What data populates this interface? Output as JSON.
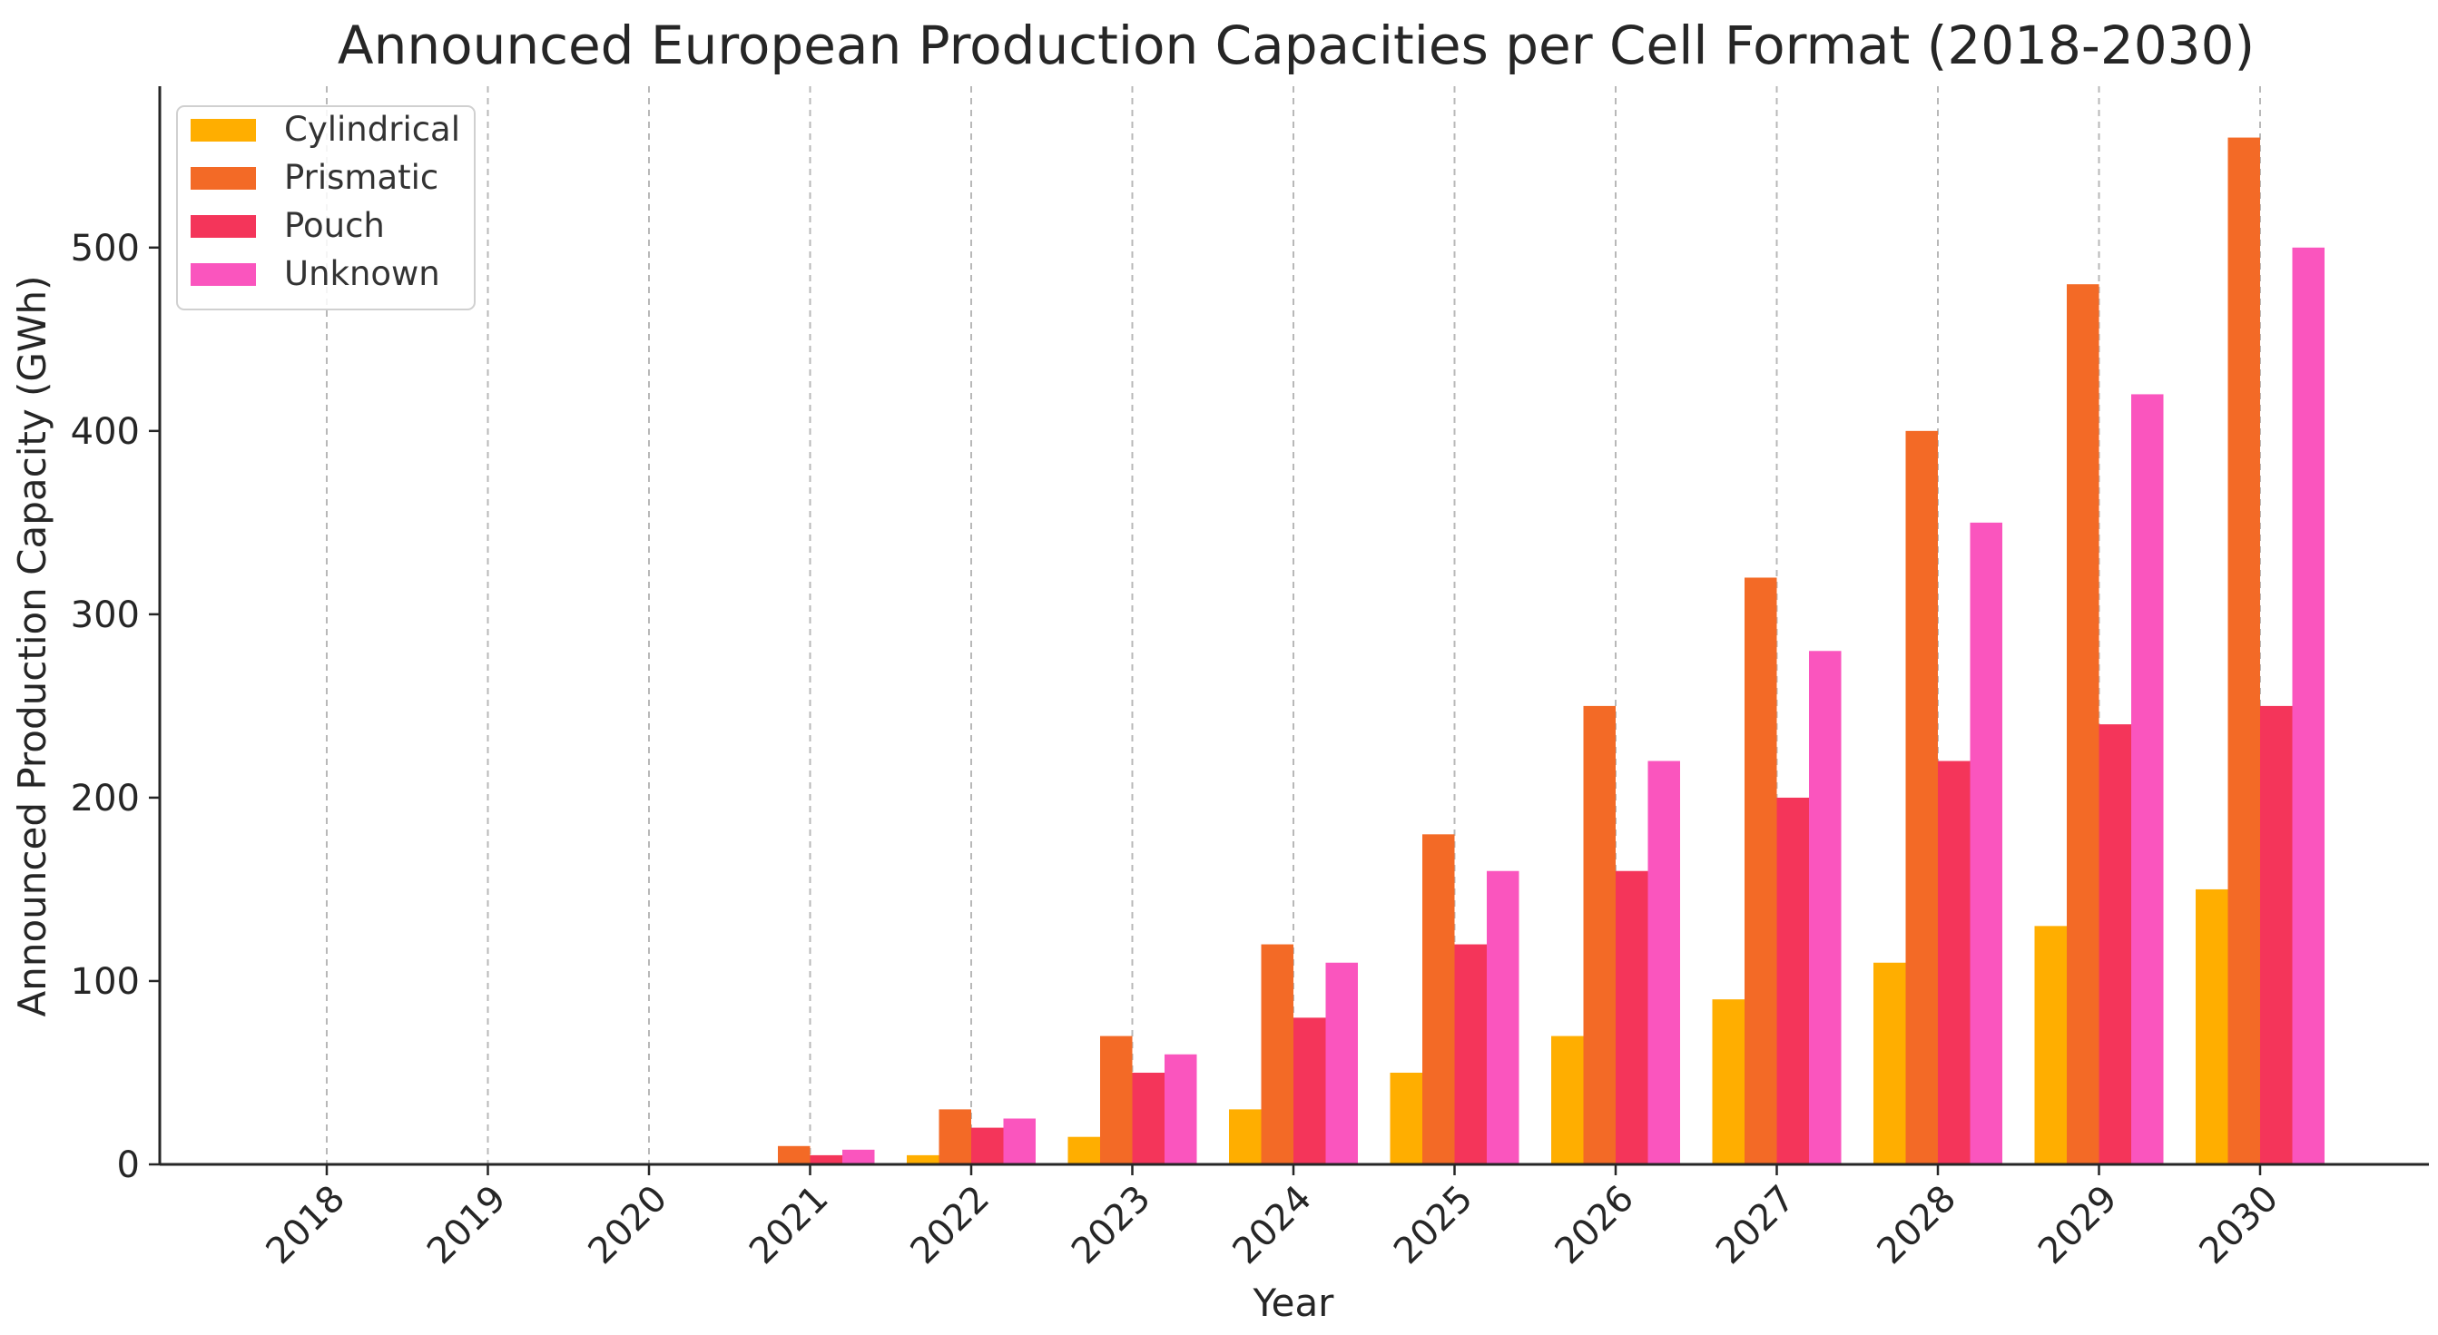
{
  "chart_data": {
    "type": "bar",
    "title": "Announced European Production Capacities per Cell Format (2018-2030)",
    "xlabel": "Year",
    "ylabel": "Announced Production Capacity (GWh)",
    "categories": [
      "2018",
      "2019",
      "2020",
      "2021",
      "2022",
      "2023",
      "2024",
      "2025",
      "2026",
      "2027",
      "2028",
      "2029",
      "2030"
    ],
    "series": [
      {
        "name": "Cylindrical",
        "color": "#FFAE00",
        "values": [
          0,
          0,
          0,
          0,
          5,
          15,
          30,
          50,
          70,
          90,
          110,
          130,
          150
        ]
      },
      {
        "name": "Prismatic",
        "color": "#F36A26",
        "values": [
          0,
          0,
          0,
          10,
          30,
          70,
          120,
          180,
          250,
          320,
          400,
          480,
          560
        ]
      },
      {
        "name": "Pouch",
        "color": "#F4355A",
        "values": [
          0,
          0,
          0,
          5,
          20,
          50,
          80,
          120,
          160,
          200,
          220,
          240,
          250
        ]
      },
      {
        "name": "Unknown",
        "color": "#FA55BE",
        "values": [
          0,
          0,
          0,
          8,
          25,
          60,
          110,
          160,
          220,
          280,
          350,
          420,
          500
        ]
      }
    ],
    "yticks": [
      0,
      100,
      200,
      300,
      400,
      500
    ],
    "ylim": [
      0,
      588
    ],
    "grid": "x-dashed",
    "legend_position": "top-left"
  }
}
